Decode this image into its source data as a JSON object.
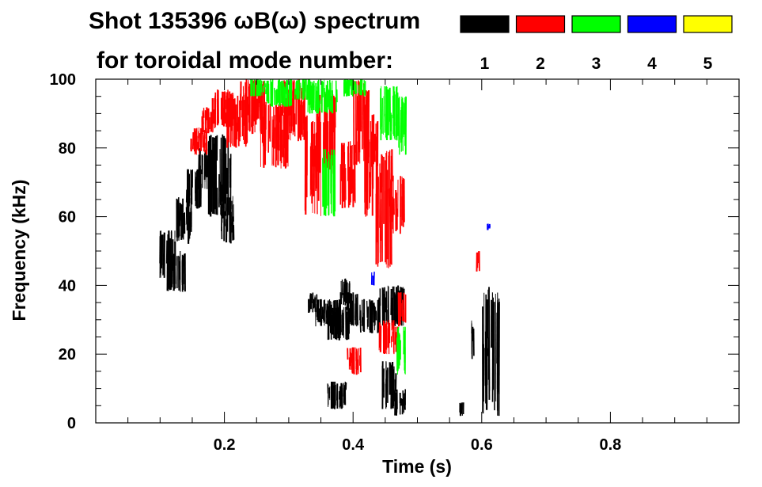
{
  "chart_data": {
    "type": "spectrogram",
    "title_line1": "Shot 135396 ωB(ω) spectrum",
    "title_line2": "for toroidal mode number:",
    "xlabel": "Time (s)",
    "ylabel": "Frequency (kHz)",
    "xlim": [
      0.0,
      1.0
    ],
    "ylim": [
      0,
      100
    ],
    "x_ticks": [
      0.2,
      0.4,
      0.6,
      0.8
    ],
    "x_tick_labels": [
      "0.2",
      "0.4",
      "0.6",
      "0.8"
    ],
    "y_ticks": [
      0,
      20,
      40,
      60,
      80,
      100
    ],
    "y_tick_labels": [
      "0",
      "20",
      "40",
      "60",
      "80",
      "100"
    ],
    "legend_position": "top-right",
    "legend": [
      {
        "label": "1",
        "color": "#000000"
      },
      {
        "label": "2",
        "color": "#ff0000"
      },
      {
        "label": "3",
        "color": "#00ff00"
      },
      {
        "label": "4",
        "color": "#0000ff"
      },
      {
        "label": "5",
        "color": "#ffff00"
      }
    ],
    "series": [
      {
        "name": "1",
        "color": "#000000",
        "segments": [
          {
            "t0": 0.1,
            "t1": 0.125,
            "f0": 42,
            "f1": 56
          },
          {
            "t0": 0.11,
            "t1": 0.14,
            "f0": 38,
            "f1": 50
          },
          {
            "t0": 0.125,
            "t1": 0.15,
            "f0": 52,
            "f1": 66
          },
          {
            "t0": 0.14,
            "t1": 0.165,
            "f0": 62,
            "f1": 74
          },
          {
            "t0": 0.16,
            "t1": 0.185,
            "f0": 68,
            "f1": 80
          },
          {
            "t0": 0.175,
            "t1": 0.21,
            "f0": 60,
            "f1": 84
          },
          {
            "t0": 0.195,
            "t1": 0.215,
            "f0": 52,
            "f1": 66
          },
          {
            "t0": 0.33,
            "t1": 0.345,
            "f0": 32,
            "f1": 38
          },
          {
            "t0": 0.34,
            "t1": 0.38,
            "f0": 28,
            "f1": 36
          },
          {
            "t0": 0.36,
            "t1": 0.395,
            "f0": 24,
            "f1": 34
          },
          {
            "t0": 0.38,
            "t1": 0.395,
            "f0": 34,
            "f1": 42
          },
          {
            "t0": 0.39,
            "t1": 0.41,
            "f0": 28,
            "f1": 38
          },
          {
            "t0": 0.41,
            "t1": 0.44,
            "f0": 26,
            "f1": 36
          },
          {
            "t0": 0.44,
            "t1": 0.48,
            "f0": 28,
            "f1": 40
          },
          {
            "t0": 0.36,
            "t1": 0.39,
            "f0": 4,
            "f1": 12
          },
          {
            "t0": 0.445,
            "t1": 0.47,
            "f0": 4,
            "f1": 18
          },
          {
            "t0": 0.465,
            "t1": 0.482,
            "f0": 2,
            "f1": 10
          },
          {
            "t0": 0.565,
            "t1": 0.572,
            "f0": 2,
            "f1": 6
          },
          {
            "t0": 0.583,
            "t1": 0.588,
            "f0": 18,
            "f1": 30
          },
          {
            "t0": 0.6,
            "t1": 0.612,
            "f0": 2,
            "f1": 40
          },
          {
            "t0": 0.615,
            "t1": 0.628,
            "f0": 2,
            "f1": 38
          }
        ]
      },
      {
        "name": "2",
        "color": "#ff0000",
        "segments": [
          {
            "t0": 0.145,
            "t1": 0.175,
            "f0": 78,
            "f1": 86
          },
          {
            "t0": 0.165,
            "t1": 0.185,
            "f0": 84,
            "f1": 92
          },
          {
            "t0": 0.18,
            "t1": 0.215,
            "f0": 86,
            "f1": 97
          },
          {
            "t0": 0.205,
            "t1": 0.235,
            "f0": 80,
            "f1": 96
          },
          {
            "t0": 0.225,
            "t1": 0.265,
            "f0": 84,
            "f1": 100
          },
          {
            "t0": 0.255,
            "t1": 0.3,
            "f0": 74,
            "f1": 93
          },
          {
            "t0": 0.285,
            "t1": 0.325,
            "f0": 82,
            "f1": 100
          },
          {
            "t0": 0.325,
            "t1": 0.35,
            "f0": 60,
            "f1": 90
          },
          {
            "t0": 0.345,
            "t1": 0.372,
            "f0": 72,
            "f1": 96
          },
          {
            "t0": 0.38,
            "t1": 0.405,
            "f0": 62,
            "f1": 82
          },
          {
            "t0": 0.4,
            "t1": 0.425,
            "f0": 75,
            "f1": 100
          },
          {
            "t0": 0.415,
            "t1": 0.44,
            "f0": 60,
            "f1": 90
          },
          {
            "t0": 0.435,
            "t1": 0.462,
            "f0": 45,
            "f1": 80
          },
          {
            "t0": 0.455,
            "t1": 0.48,
            "f0": 55,
            "f1": 72
          },
          {
            "t0": 0.39,
            "t1": 0.412,
            "f0": 14,
            "f1": 22
          },
          {
            "t0": 0.44,
            "t1": 0.47,
            "f0": 20,
            "f1": 30
          },
          {
            "t0": 0.47,
            "t1": 0.482,
            "f0": 28,
            "f1": 38
          },
          {
            "t0": 0.592,
            "t1": 0.598,
            "f0": 44,
            "f1": 50
          }
        ]
      },
      {
        "name": "3",
        "color": "#00ff00",
        "segments": [
          {
            "t0": 0.24,
            "t1": 0.265,
            "f0": 95,
            "f1": 100
          },
          {
            "t0": 0.265,
            "t1": 0.305,
            "f0": 92,
            "f1": 100
          },
          {
            "t0": 0.305,
            "t1": 0.33,
            "f0": 94,
            "f1": 100
          },
          {
            "t0": 0.33,
            "t1": 0.375,
            "f0": 90,
            "f1": 100
          },
          {
            "t0": 0.352,
            "t1": 0.372,
            "f0": 60,
            "f1": 80
          },
          {
            "t0": 0.385,
            "t1": 0.42,
            "f0": 95,
            "f1": 100
          },
          {
            "t0": 0.44,
            "t1": 0.47,
            "f0": 82,
            "f1": 98
          },
          {
            "t0": 0.47,
            "t1": 0.485,
            "f0": 78,
            "f1": 95
          },
          {
            "t0": 0.468,
            "t1": 0.482,
            "f0": 14,
            "f1": 28
          }
        ]
      },
      {
        "name": "4",
        "color": "#0000ff",
        "segments": [
          {
            "t0": 0.428,
            "t1": 0.434,
            "f0": 40,
            "f1": 44
          },
          {
            "t0": 0.609,
            "t1": 0.613,
            "f0": 56,
            "f1": 58
          }
        ]
      },
      {
        "name": "5",
        "color": "#ffff00",
        "segments": []
      }
    ]
  }
}
